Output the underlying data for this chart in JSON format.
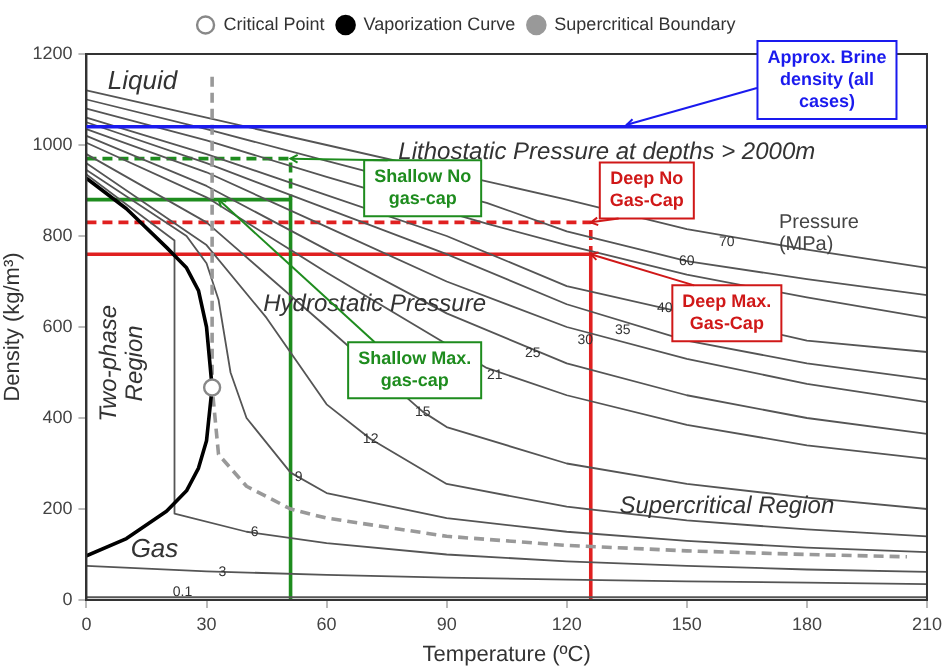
{
  "chart_data": {
    "type": "line",
    "xlabel": "Temperature (ºC)",
    "ylabel": "Density (kg/m³)",
    "xlim": [
      0,
      210
    ],
    "xticks": [
      0,
      30,
      60,
      90,
      120,
      150,
      180,
      210
    ],
    "ylim": [
      0,
      1200
    ],
    "yticks": [
      0,
      200,
      400,
      600,
      800,
      1000,
      1200
    ],
    "grid": false,
    "legend": "top",
    "ref_lines": [
      {
        "axis": "y",
        "value": 1040,
        "label": "Approx. Brine density (all cases)",
        "color": "#1a1aee"
      }
    ],
    "series": [
      {
        "name": "Critical Point",
        "type": "scatter",
        "marker": "circle",
        "color": "#888888",
        "x": [
          31.4
        ],
        "values": [
          467
        ]
      },
      {
        "name": "Vaporization Curve",
        "type": "line",
        "color": "#000000",
        "x": [
          0,
          10,
          20,
          25,
          28,
          30,
          31.4,
          30,
          28,
          25,
          20,
          10,
          0
        ],
        "values": [
          97,
          135,
          195,
          240,
          290,
          350,
          467,
          600,
          680,
          730,
          775,
          860,
          927
        ]
      },
      {
        "name": "Supercritical Boundary",
        "type": "line",
        "line_style": "dashed",
        "color": "#999999",
        "x": [
          31.4,
          31.4,
          33,
          40,
          51,
          60,
          90,
          120,
          150,
          180,
          205
        ],
        "values": [
          1150,
          467,
          320,
          250,
          200,
          180,
          140,
          120,
          108,
          100,
          95
        ]
      },
      {
        "type": "line",
        "color": "#555555",
        "x": [
          0,
          60,
          120,
          210
        ],
        "values": [
          6,
          6,
          6,
          6
        ]
      },
      {
        "type": "line",
        "color": "#555555",
        "x": [
          0,
          30,
          60,
          90,
          120,
          150,
          180,
          210
        ],
        "values": [
          75,
          63,
          55,
          49,
          45,
          41,
          38,
          35
        ]
      },
      {
        "type": "line",
        "color": "#555555",
        "x": [
          0,
          22,
          22,
          40,
          60,
          90,
          120,
          150,
          180,
          210
        ],
        "values": [
          935,
          790,
          190,
          150,
          125,
          100,
          85,
          75,
          67,
          62
        ]
      },
      {
        "type": "line",
        "color": "#555555",
        "x": [
          0,
          25,
          30,
          33,
          36,
          40,
          51,
          60,
          90,
          120,
          150,
          180,
          210
        ],
        "values": [
          945,
          800,
          740,
          660,
          500,
          400,
          280,
          235,
          180,
          150,
          130,
          115,
          105
        ]
      },
      {
        "type": "line",
        "color": "#555555",
        "x": [
          0,
          30,
          45,
          60,
          71,
          90,
          120,
          150,
          180,
          210
        ],
        "values": [
          960,
          780,
          620,
          430,
          354,
          255,
          205,
          175,
          155,
          140
        ]
      },
      {
        "type": "line",
        "color": "#555555",
        "x": [
          0,
          30,
          60,
          84,
          90,
          120,
          150,
          180,
          210
        ],
        "values": [
          980,
          830,
          600,
          414,
          380,
          300,
          255,
          225,
          200
        ]
      },
      {
        "type": "line",
        "color": "#555555",
        "x": [
          0,
          30,
          60,
          100,
          120,
          150,
          180,
          210
        ],
        "values": [
          1005,
          885,
          720,
          510,
          450,
          385,
          340,
          310
        ]
      },
      {
        "type": "line",
        "color": "#555555",
        "x": [
          0,
          30,
          60,
          90,
          120,
          150,
          180,
          210
        ],
        "values": [
          1020,
          910,
          770,
          630,
          520,
          450,
          400,
          365
        ]
      },
      {
        "type": "line",
        "color": "#555555",
        "x": [
          0,
          30,
          60,
          90,
          120,
          150,
          180,
          210
        ],
        "values": [
          1035,
          940,
          820,
          700,
          600,
          530,
          475,
          435
        ]
      },
      {
        "type": "line",
        "color": "#555555",
        "x": [
          0,
          30,
          60,
          90,
          120,
          150,
          180,
          210
        ],
        "values": [
          1050,
          960,
          860,
          760,
          650,
          570,
          520,
          485
        ]
      },
      {
        "type": "line",
        "color": "#555555",
        "x": [
          0,
          30,
          60,
          90,
          120,
          180,
          210
        ],
        "values": [
          1060,
          980,
          890,
          800,
          690,
          570,
          545
        ]
      },
      {
        "type": "line",
        "color": "#555555",
        "x": [
          0,
          30,
          60,
          100,
          120,
          150,
          180,
          210
        ],
        "values": [
          1080,
          1010,
          930,
          827,
          780,
          715,
          665,
          620
        ]
      },
      {
        "type": "line",
        "color": "#555555",
        "x": [
          0,
          30,
          60,
          100,
          120,
          150,
          180,
          210
        ],
        "values": [
          1100,
          1035,
          965,
          873,
          810,
          745,
          705,
          670
        ]
      },
      {
        "type": "line",
        "color": "#555555",
        "x": [
          0,
          30,
          60,
          100,
          120,
          150,
          180,
          210
        ],
        "values": [
          1120,
          1060,
          1000,
          920,
          880,
          815,
          770,
          730
        ]
      },
      {
        "type": "line",
        "line_style": "dashed",
        "color": "#1e8c1e",
        "x": [
          0,
          51,
          51
        ],
        "values": [
          970,
          970,
          880
        ]
      },
      {
        "type": "line",
        "color": "#1e8c1e",
        "x": [
          0,
          51,
          51
        ],
        "values": [
          880,
          880,
          0
        ]
      },
      {
        "type": "line",
        "line_style": "dashed",
        "color": "#e02020",
        "x": [
          0,
          126,
          126
        ],
        "values": [
          830,
          830,
          760
        ]
      },
      {
        "type": "line",
        "color": "#e02020",
        "x": [
          0,
          126,
          126
        ],
        "values": [
          760,
          760,
          0
        ]
      }
    ],
    "annotations": [
      "Liquid",
      "Gas",
      "Two-phase Region",
      "Supercritical Region",
      "Hydrostatic Pressure",
      "Lithostatic Pressure at depths > 2000m",
      "Pressure (MPa)",
      {
        "text": "Shallow No gas-cap",
        "x": 51,
        "y": 970
      },
      {
        "text": "Shallow Max. gas-cap",
        "x": 33,
        "y": 880
      },
      {
        "text": "Deep No Gas-Cap",
        "x": 126,
        "y": 830
      },
      {
        "text": "Deep Max. Gas-Cap",
        "x": 126,
        "y": 760
      },
      {
        "text": "0.1",
        "x": 24,
        "y": 17
      },
      {
        "text": "3",
        "x": 34,
        "y": 62
      },
      {
        "text": "6",
        "x": 42,
        "y": 150
      },
      {
        "text": "9",
        "x": 53,
        "y": 269
      },
      {
        "text": "12",
        "x": 71,
        "y": 354
      },
      {
        "text": "15",
        "x": 84,
        "y": 414
      },
      {
        "text": "21",
        "x": 102,
        "y": 495
      },
      {
        "text": "25",
        "x": 111.5,
        "y": 542
      },
      {
        "text": "30",
        "x": 124.6,
        "y": 572
      },
      {
        "text": "35",
        "x": 134,
        "y": 594
      },
      {
        "text": "40",
        "x": 144.5,
        "y": 641
      },
      {
        "text": "60",
        "x": 150,
        "y": 745
      },
      {
        "text": "70",
        "x": 160,
        "y": 786
      }
    ]
  }
}
